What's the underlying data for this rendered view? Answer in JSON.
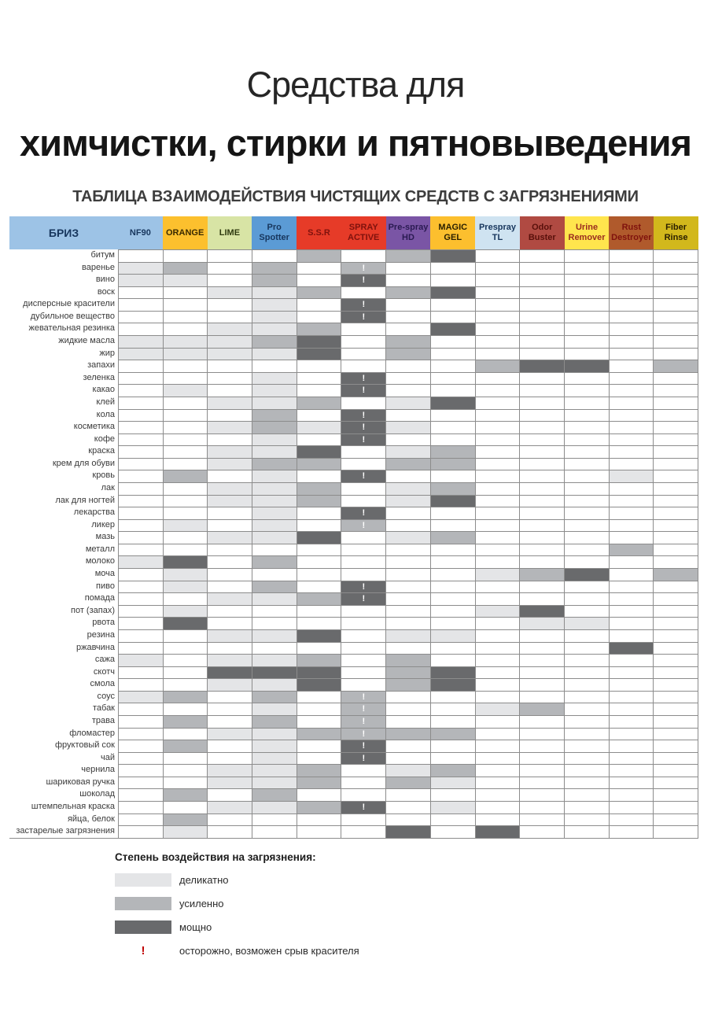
{
  "page": {
    "title_line1": "Средства для",
    "title_line2": "химчистки, стирки и пятновыведения",
    "subtitle": "ТАБЛИЦА ВЗАИМОДЕЙСТВИЯ ЧИСТЯЩИХ СРЕДСТВ С ЗАГРЯЗНЕНИЯМИ"
  },
  "table": {
    "brand_header": {
      "name": "БРИЗ",
      "bg": "#9dc3e6",
      "fg": "#17365d"
    },
    "products": [
      {
        "id": "nf90",
        "name": "NF90",
        "bg": "#9dc3e6",
        "fg": "#17365d"
      },
      {
        "id": "orange",
        "name": "ORANGE",
        "bg": "#fcc02e",
        "fg": "#3a2a00"
      },
      {
        "id": "lime",
        "name": "LIME",
        "bg": "#d8e4a5",
        "fg": "#2f3a10"
      },
      {
        "id": "pro-spotter",
        "name": "Pro Spotter",
        "bg": "#5b9bd5",
        "fg": "#17365d"
      },
      {
        "id": "ssr",
        "name": "S.S.R",
        "bg": "#e63b28",
        "fg": "#7f120d"
      },
      {
        "id": "spray-active",
        "name": "SPRAY ACTIVE",
        "bg": "#e63b28",
        "fg": "#7f120d"
      },
      {
        "id": "pre-spray-hd",
        "name": "Pre-spray HD",
        "bg": "#7a55a5",
        "fg": "#2a1a52"
      },
      {
        "id": "magic-gel",
        "name": "MAGIC GEL",
        "bg": "#fcbf2e",
        "fg": "#2b2000"
      },
      {
        "id": "prespray-tl",
        "name": "Prespray TL",
        "bg": "#cfe3f1",
        "fg": "#17365d"
      },
      {
        "id": "odor-buster",
        "name": "Odor Buster",
        "bg": "#b04a42",
        "fg": "#59100b"
      },
      {
        "id": "urine-remover",
        "name": "Urine Remover",
        "bg": "#ffe54d",
        "fg": "#9b2d1f"
      },
      {
        "id": "rust-destroyer",
        "name": "Rust Destroyer",
        "bg": "#b05a2c",
        "fg": "#7f120d"
      },
      {
        "id": "fiber-rinse",
        "name": "Fiber Rinse",
        "bg": "#d2b81c",
        "fg": "#2b2000"
      }
    ],
    "level_colors": {
      "1": "#e4e5e7",
      "2": "#b4b6b9",
      "3": "#696a6c"
    },
    "warning_mark_color": "#ffffff"
  },
  "legend": {
    "title": "Степень воздействия на загрязнения:",
    "items": [
      {
        "level": "1",
        "label": "деликатно"
      },
      {
        "level": "2",
        "label": "усиленно"
      },
      {
        "level": "3",
        "label": "мощно"
      }
    ],
    "warning": {
      "symbol": "!",
      "color": "#c00000",
      "label": "осторожно, возможен срыв красителя"
    }
  },
  "chart_data": {
    "type": "heatmap",
    "title": "ТАБЛИЦА ВЗАИМОДЕЙСТВИЯ ЧИСТЯЩИХ СРЕДСТВ С ЗАГРЯЗНЕНИЯМИ",
    "legend_position": "bottom-left",
    "value_meaning": {
      "": "нет воздействия",
      "1": "деликатно",
      "2": "усиленно",
      "3": "мощно",
      "!": "осторожно, возможен срыв красителя"
    },
    "columns": [
      "NF90",
      "ORANGE",
      "LIME",
      "Pro Spotter",
      "S.S.R",
      "SPRAY ACTIVE",
      "Pre-spray HD",
      "MAGIC GEL",
      "Prespray TL",
      "Odor Buster",
      "Urine Remover",
      "Rust Destroyer",
      "Fiber Rinse"
    ],
    "rows": [
      "битум",
      "варенье",
      "вино",
      "воск",
      "дисперсные красители",
      "дубильное вещество",
      "жевательная резинка",
      "жидкие масла",
      "жир",
      "запахи",
      "зеленка",
      "какао",
      "клей",
      "кола",
      "косметика",
      "кофе",
      "краска",
      "крем для обуви",
      "кровь",
      "лак",
      "лак для ногтей",
      "лекарства",
      "ликер",
      "мазь",
      "металл",
      "молоко",
      "моча",
      "пиво",
      "помада",
      "пот (запах)",
      "рвота",
      "резина",
      "ржавчина",
      "сажа",
      "скотч",
      "смола",
      "соус",
      "табак",
      "трава",
      "фломастер",
      "фруктовый сок",
      "чай",
      "чернила",
      "шариковая ручка",
      "шоколад",
      "штемпельная краска",
      "яйца, белок",
      "застарелые загрязнения"
    ],
    "values": [
      [
        "",
        "",
        "",
        "",
        "2",
        "",
        "2",
        "3",
        "",
        "",
        "",
        "",
        ""
      ],
      [
        "1",
        "2",
        "",
        "2",
        "",
        "2!",
        "",
        "",
        "",
        "",
        "",
        "",
        ""
      ],
      [
        "1",
        "1",
        "",
        "2",
        "",
        "3!",
        "",
        "",
        "",
        "",
        "",
        "",
        ""
      ],
      [
        "",
        "",
        "1",
        "1",
        "2",
        "",
        "2",
        "3",
        "",
        "",
        "",
        "",
        ""
      ],
      [
        "",
        "",
        "",
        "1",
        "",
        "3!",
        "",
        "",
        "",
        "",
        "",
        "",
        ""
      ],
      [
        "",
        "",
        "",
        "1",
        "",
        "3!",
        "",
        "",
        "",
        "",
        "",
        "",
        ""
      ],
      [
        "",
        "",
        "1",
        "1",
        "2",
        "",
        "",
        "3",
        "",
        "",
        "",
        "",
        ""
      ],
      [
        "1",
        "1",
        "1",
        "2",
        "3",
        "",
        "2",
        "",
        "",
        "",
        "",
        "",
        ""
      ],
      [
        "1",
        "1",
        "1",
        "1",
        "3",
        "",
        "2",
        "",
        "",
        "",
        "",
        "",
        ""
      ],
      [
        "",
        "",
        "",
        "",
        "",
        "",
        "",
        "",
        "2",
        "3",
        "3",
        "",
        "2"
      ],
      [
        "",
        "",
        "",
        "1",
        "",
        "3!",
        "",
        "",
        "",
        "",
        "",
        "",
        ""
      ],
      [
        "",
        "1",
        "",
        "1",
        "",
        "3!",
        "",
        "",
        "",
        "",
        "",
        "",
        ""
      ],
      [
        "",
        "",
        "1",
        "1",
        "2",
        "",
        "1",
        "3",
        "",
        "",
        "",
        "",
        ""
      ],
      [
        "",
        "",
        "",
        "2",
        "",
        "3!",
        "",
        "",
        "",
        "",
        "",
        "",
        ""
      ],
      [
        "",
        "",
        "1",
        "2",
        "1",
        "3!",
        "1",
        "",
        "",
        "",
        "",
        "",
        ""
      ],
      [
        "",
        "",
        "",
        "1",
        "",
        "3!",
        "",
        "",
        "",
        "",
        "",
        "",
        ""
      ],
      [
        "",
        "",
        "1",
        "1",
        "3",
        "",
        "1",
        "2",
        "",
        "",
        "",
        "",
        ""
      ],
      [
        "",
        "",
        "1",
        "2",
        "2",
        "",
        "2",
        "2",
        "",
        "",
        "",
        "",
        ""
      ],
      [
        "",
        "2",
        "",
        "1",
        "",
        "3!",
        "",
        "",
        "",
        "",
        "",
        "1",
        ""
      ],
      [
        "",
        "",
        "1",
        "1",
        "2",
        "",
        "1",
        "2",
        "",
        "",
        "",
        "",
        ""
      ],
      [
        "",
        "",
        "1",
        "1",
        "2",
        "",
        "1",
        "3",
        "",
        "",
        "",
        "",
        ""
      ],
      [
        "",
        "",
        "",
        "1",
        "",
        "3!",
        "",
        "",
        "",
        "",
        "",
        "",
        ""
      ],
      [
        "",
        "1",
        "",
        "1",
        "",
        "2!",
        "",
        "",
        "",
        "",
        "",
        "",
        ""
      ],
      [
        "",
        "",
        "1",
        "1",
        "3",
        "",
        "1",
        "2",
        "",
        "",
        "",
        "",
        ""
      ],
      [
        "",
        "",
        "",
        "",
        "",
        "",
        "",
        "",
        "",
        "",
        "",
        "2",
        ""
      ],
      [
        "1",
        "3",
        "",
        "2",
        "",
        "",
        "",
        "",
        "",
        "",
        "",
        "",
        ""
      ],
      [
        "",
        "1",
        "",
        "",
        "",
        "",
        "",
        "",
        "1",
        "2",
        "3",
        "",
        "2"
      ],
      [
        "",
        "1",
        "",
        "2",
        "",
        "3!",
        "",
        "",
        "",
        "",
        "",
        "",
        ""
      ],
      [
        "",
        "",
        "1",
        "1",
        "2",
        "3!",
        "",
        "",
        "",
        "",
        "",
        "",
        ""
      ],
      [
        "",
        "1",
        "",
        "",
        "",
        "",
        "",
        "",
        "1",
        "3",
        "",
        "",
        ""
      ],
      [
        "",
        "3",
        "",
        "",
        "",
        "",
        "",
        "",
        "",
        "1",
        "1",
        "",
        ""
      ],
      [
        "",
        "",
        "1",
        "1",
        "3",
        "",
        "1",
        "1",
        "",
        "",
        "",
        "",
        ""
      ],
      [
        "",
        "",
        "",
        "",
        "",
        "",
        "",
        "",
        "",
        "",
        "",
        "3",
        ""
      ],
      [
        "1",
        "",
        "1",
        "1",
        "2",
        "",
        "2",
        "",
        "",
        "",
        "",
        "",
        ""
      ],
      [
        "",
        "",
        "3",
        "3",
        "3",
        "",
        "2",
        "3",
        "",
        "",
        "",
        "",
        ""
      ],
      [
        "",
        "",
        "1",
        "1",
        "3",
        "",
        "2",
        "3",
        "",
        "",
        "",
        "",
        ""
      ],
      [
        "1",
        "2",
        "",
        "2",
        "",
        "2!",
        "",
        "",
        "",
        "",
        "",
        "",
        ""
      ],
      [
        "",
        "",
        "",
        "1",
        "",
        "2!",
        "",
        "",
        "1",
        "2",
        "",
        "",
        ""
      ],
      [
        "",
        "2",
        "",
        "2",
        "",
        "2!",
        "",
        "",
        "",
        "",
        "",
        "",
        ""
      ],
      [
        "",
        "",
        "1",
        "1",
        "2",
        "2!",
        "2",
        "2",
        "",
        "",
        "",
        "",
        ""
      ],
      [
        "",
        "2",
        "",
        "1",
        "",
        "3!",
        "",
        "",
        "",
        "",
        "",
        "",
        ""
      ],
      [
        "",
        "",
        "",
        "1",
        "",
        "3!",
        "",
        "",
        "",
        "",
        "",
        "",
        ""
      ],
      [
        "",
        "",
        "1",
        "1",
        "2",
        "",
        "1",
        "2",
        "",
        "",
        "",
        "",
        ""
      ],
      [
        "",
        "",
        "1",
        "1",
        "2",
        "",
        "2",
        "1",
        "",
        "",
        "",
        "",
        ""
      ],
      [
        "",
        "2",
        "",
        "2",
        "",
        "",
        "",
        "",
        "",
        "",
        "",
        "",
        ""
      ],
      [
        "",
        "",
        "1",
        "1",
        "2",
        "3!",
        "",
        "1",
        "",
        "",
        "",
        "",
        ""
      ],
      [
        "",
        "2",
        "",
        "",
        "",
        "",
        "",
        "",
        "",
        "",
        "",
        "",
        ""
      ],
      [
        "",
        "1",
        "",
        "",
        "",
        "",
        "3",
        "",
        "3",
        "",
        "",
        "",
        ""
      ]
    ]
  }
}
